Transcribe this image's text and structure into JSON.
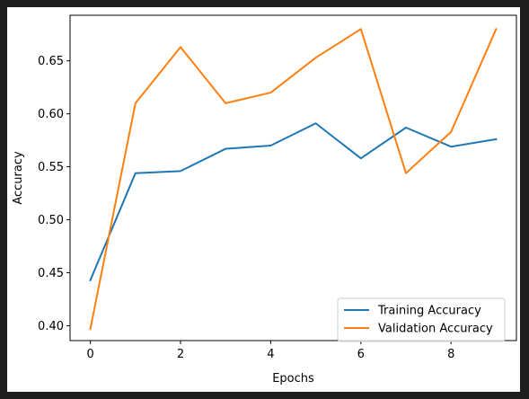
{
  "chart_data": {
    "type": "line",
    "title": "",
    "xlabel": "Epochs",
    "ylabel": "Accuracy",
    "x": [
      0,
      1,
      2,
      3,
      4,
      5,
      6,
      7,
      8,
      9
    ],
    "xlim": [
      -0.45,
      9.45
    ],
    "ylim": [
      0.386,
      0.693
    ],
    "xticks": [
      0,
      2,
      4,
      6,
      8
    ],
    "yticks": [
      0.4,
      0.45,
      0.5,
      0.55,
      0.6,
      0.65
    ],
    "xtick_labels": [
      "0",
      "2",
      "4",
      "6",
      "8"
    ],
    "ytick_labels": [
      "0.40",
      "0.45",
      "0.50",
      "0.55",
      "0.60",
      "0.65"
    ],
    "grid": false,
    "legend_position": "lower-right",
    "series": [
      {
        "name": "Training Accuracy",
        "color": "#1f77b4",
        "values": [
          0.443,
          0.544,
          0.546,
          0.567,
          0.57,
          0.591,
          0.558,
          0.587,
          0.569,
          0.576
        ]
      },
      {
        "name": "Validation Accuracy",
        "color": "#ff7f0e",
        "values": [
          0.397,
          0.61,
          0.663,
          0.61,
          0.62,
          0.653,
          0.68,
          0.544,
          0.583,
          0.68
        ]
      }
    ]
  }
}
